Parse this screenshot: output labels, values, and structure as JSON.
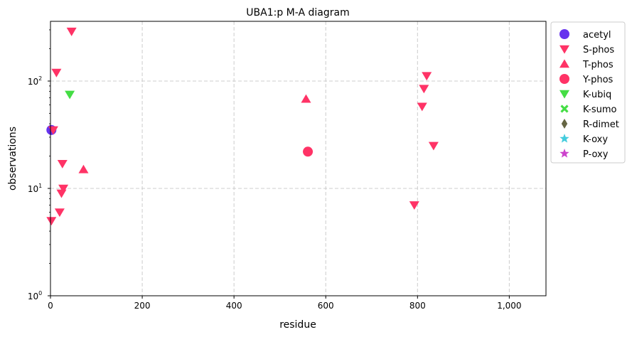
{
  "chart_data": {
    "type": "scatter",
    "title": "UBA1:p M-A diagram",
    "xlabel": "residue",
    "ylabel": "observations",
    "xlim": [
      0,
      1080
    ],
    "ylim": [
      1,
      360
    ],
    "yscale": "log",
    "grid": true,
    "legend_position": "outside-right",
    "x_ticks": [
      {
        "value": 0,
        "label": "0"
      },
      {
        "value": 200,
        "label": "200"
      },
      {
        "value": 400,
        "label": "400"
      },
      {
        "value": 600,
        "label": "600"
      },
      {
        "value": 800,
        "label": "800"
      },
      {
        "value": 1000,
        "label": "1,000"
      }
    ],
    "y_ticks": [
      {
        "value": 1,
        "label": "10",
        "exp": "0"
      },
      {
        "value": 10,
        "label": "10",
        "exp": "1"
      },
      {
        "value": 100,
        "label": "10",
        "exp": "2"
      }
    ],
    "series": [
      {
        "name": "acetyl",
        "marker": "circle",
        "color": "#6633ee",
        "points": [
          [
            2,
            35
          ]
        ]
      },
      {
        "name": "S-phos",
        "marker": "triangle-down",
        "color": "#ff3366",
        "points": [
          [
            2,
            5
          ],
          [
            6,
            35
          ],
          [
            13,
            120
          ],
          [
            20,
            6
          ],
          [
            24,
            9
          ],
          [
            26,
            17
          ],
          [
            28,
            10
          ],
          [
            46,
            290
          ],
          [
            793,
            7
          ],
          [
            810,
            58
          ],
          [
            814,
            85
          ],
          [
            820,
            112
          ],
          [
            835,
            25
          ]
        ]
      },
      {
        "name": "T-phos",
        "marker": "triangle-up",
        "color": "#ff3366",
        "points": [
          [
            72,
            15
          ],
          [
            557,
            68
          ]
        ]
      },
      {
        "name": "Y-phos",
        "marker": "circle",
        "color": "#ff3366",
        "points": [
          [
            561,
            22
          ]
        ]
      },
      {
        "name": "K-ubiq",
        "marker": "triangle-down",
        "color": "#44dd44",
        "points": [
          [
            42,
            75
          ]
        ]
      },
      {
        "name": "K-sumo",
        "marker": "x",
        "color": "#44dd44",
        "points": []
      },
      {
        "name": "R-dimet",
        "marker": "diamond",
        "color": "#666644",
        "points": []
      },
      {
        "name": "K-oxy",
        "marker": "star",
        "color": "#44ccdd",
        "points": []
      },
      {
        "name": "P-oxy",
        "marker": "star",
        "color": "#cc44cc",
        "points": []
      }
    ]
  }
}
